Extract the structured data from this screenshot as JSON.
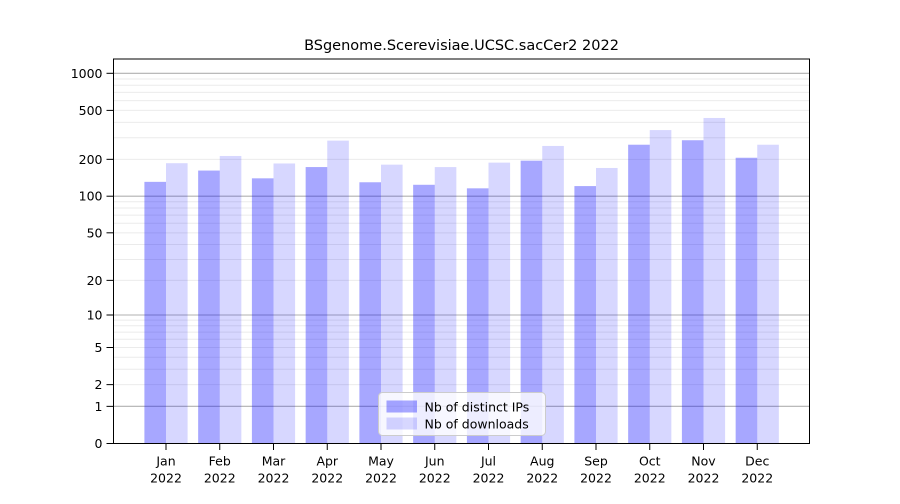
{
  "chart_data": {
    "type": "bar",
    "title": "BSgenome.Scerevisiae.UCSC.sacCer2 2022",
    "categories": [
      "Jan",
      "Feb",
      "Mar",
      "Apr",
      "May",
      "Jun",
      "Jul",
      "Aug",
      "Sep",
      "Oct",
      "Nov",
      "Dec"
    ],
    "year_sublabel": "2022",
    "series": [
      {
        "name": "Nb of distinct IPs",
        "color": "rgba(0,0,255,0.345)",
        "legend_swatch_color": "rgba(0,0,255,0.345)",
        "values": [
          131,
          162,
          140,
          173,
          130,
          124,
          116,
          195,
          121,
          263,
          286,
          206
        ]
      },
      {
        "name": "Nb of downloads",
        "color": "rgba(0,0,255,0.155)",
        "legend_swatch_color": "rgba(0,0,255,0.155)",
        "values": [
          186,
          213,
          185,
          284,
          181,
          173,
          188,
          257,
          170,
          346,
          434,
          263
        ]
      }
    ],
    "y_axis": {
      "scale": "log10(value+1)",
      "labeled_ticks": [
        0,
        1,
        2,
        5,
        10,
        20,
        50,
        100,
        200,
        500,
        1000
      ],
      "decade_gridlines": [
        1,
        10,
        100,
        1000
      ],
      "minor_gridlines": [
        2,
        3,
        4,
        5,
        6,
        7,
        8,
        9,
        20,
        30,
        40,
        50,
        60,
        70,
        80,
        90,
        200,
        300,
        400,
        500,
        600,
        700,
        800,
        900
      ],
      "ylim": [
        0,
        1000
      ],
      "grid": true
    },
    "legend": {
      "position": "bottom-center-inside",
      "entries": [
        "Nb of distinct IPs",
        "Nb of downloads"
      ]
    }
  },
  "colors": {
    "background": "#ffffff",
    "axis": "#000000",
    "decade_grid": "#b0b0b0",
    "minor_grid": "#ebebeb",
    "legend_background": "rgba(255,255,255,0.8)",
    "legend_border": "#cccccc",
    "text": "#000000"
  }
}
